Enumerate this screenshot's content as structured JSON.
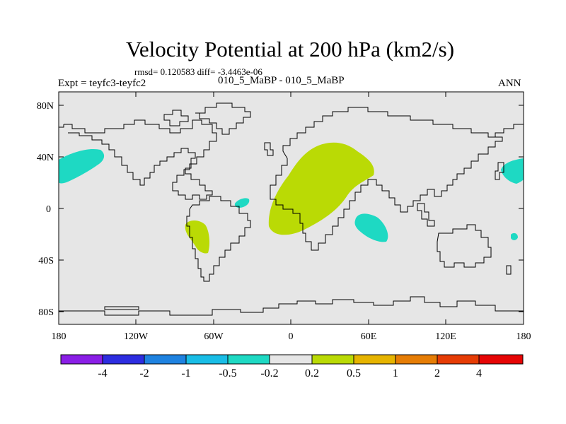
{
  "title": "Velocity Potential at 200 hPa (km2/s)",
  "stats": "rmsd= 0.120583 diff= -3.4463e-06",
  "left_label": "Expt = teyfc3-teyfc2",
  "center_label": "010_5_MaBP - 010_5_MaBP",
  "right_label": "ANN",
  "axes": {
    "lat_ticks": [
      "80N",
      "40N",
      "0",
      "40S",
      "80S"
    ],
    "lon_ticks": [
      "180",
      "120W",
      "60W",
      "0",
      "60E",
      "120E",
      "180"
    ]
  },
  "colorbar": {
    "colors": [
      "#8a1ee6",
      "#2d2de0",
      "#1e82e0",
      "#19bde6",
      "#1ed9c3",
      "#e6e6e6",
      "#bada05",
      "#e6b400",
      "#e67d05",
      "#e63c05",
      "#e60505"
    ],
    "labels": [
      "-4",
      "-2",
      "-1",
      "-0.5",
      "-0.2",
      "0.2",
      "0.5",
      "1",
      "2",
      "4"
    ]
  },
  "fields": {
    "positive_color": "#bada05",
    "negative_color": "#1ed9c3",
    "background_color": "#e6e6e6"
  }
}
